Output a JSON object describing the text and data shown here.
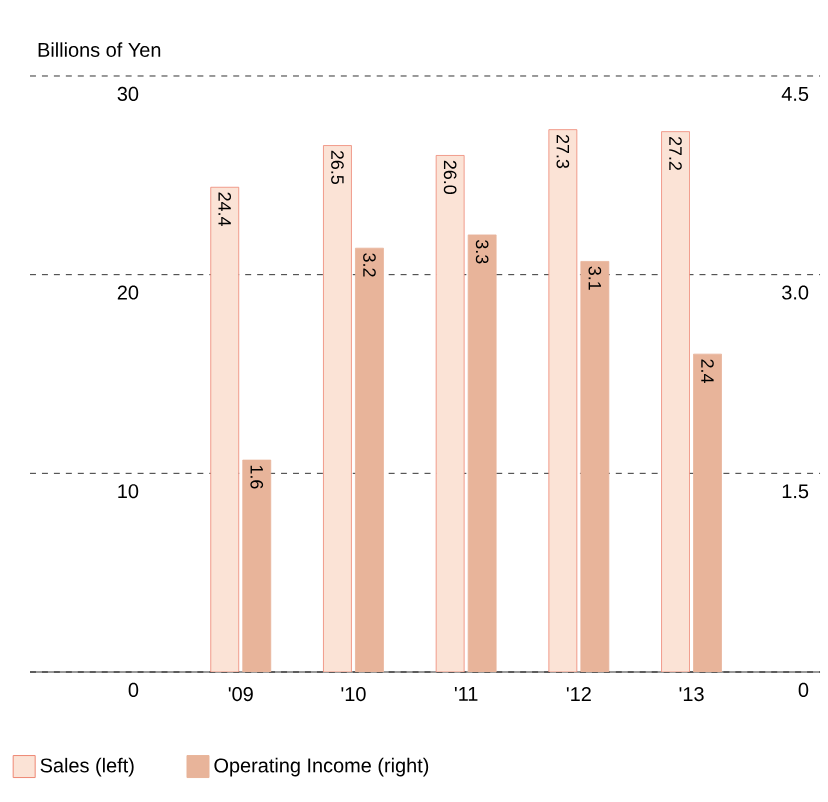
{
  "chart_data": {
    "type": "bar",
    "ylabel": "Billions of Yen",
    "categories": [
      "'09",
      "'10",
      "'11",
      "'12",
      "'13"
    ],
    "series": [
      {
        "name": "Sales (left)",
        "color": "#fbe3d6",
        "values": [
          24.4,
          26.5,
          26.0,
          27.3,
          27.2
        ],
        "value_labels": [
          "24.4",
          "26.5",
          "26.0",
          "27.3",
          "27.2"
        ]
      },
      {
        "name": "Operating Income (right)",
        "color": "#e8b49a",
        "axis": "y2",
        "values": [
          1.6,
          3.2,
          3.3,
          3.1,
          2.4
        ],
        "value_labels": [
          "1.6",
          "3.2",
          "3.3",
          "3.1",
          "2.4"
        ]
      }
    ],
    "ylim": [
      0,
      30
    ],
    "yticks": [
      0,
      10,
      20,
      30
    ],
    "y2lim": [
      0,
      4.5
    ],
    "y2ticks": [
      0,
      {
        "value": 1.5,
        "label": "1.5"
      },
      {
        "value": 3.0,
        "label": "3.0"
      },
      {
        "value": 4.5,
        "label": "4.5"
      }
    ],
    "grid": "y",
    "legend": "bottom"
  }
}
